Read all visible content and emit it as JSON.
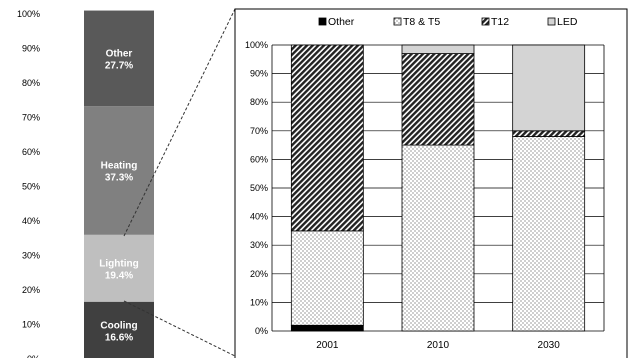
{
  "chart_data": [
    {
      "type": "bar",
      "stacked": true,
      "ylim": [
        0,
        100
      ],
      "yticks": [
        "0%",
        "10%",
        "20%",
        "30%",
        "40%",
        "50%",
        "60%",
        "70%",
        "80%",
        "90%",
        "100%"
      ],
      "segments": [
        {
          "name": "Cooling",
          "value": 16.6,
          "value_label": "16.6%",
          "color": "#404040"
        },
        {
          "name": "Lighting",
          "value": 19.4,
          "value_label": "19.4%",
          "color": "#bfbfbf"
        },
        {
          "name": "Heating",
          "value": 37.3,
          "value_label": "37.3%",
          "color": "#808080"
        },
        {
          "name": "Other",
          "value": 27.7,
          "value_label": "27.7%",
          "color": "#595959"
        }
      ],
      "grid": false
    },
    {
      "type": "bar",
      "stacked": true,
      "categories": [
        "2001",
        "2010",
        "2030"
      ],
      "ylim": [
        0,
        100
      ],
      "yticks": [
        "0%",
        "10%",
        "20%",
        "30%",
        "40%",
        "50%",
        "60%",
        "70%",
        "80%",
        "90%",
        "100%"
      ],
      "series": [
        {
          "name": "Other",
          "values": [
            2,
            0,
            0
          ],
          "fill": "solid-black"
        },
        {
          "name": "T8 & T5",
          "values": [
            33,
            65,
            68
          ],
          "fill": "dots"
        },
        {
          "name": "T12",
          "values": [
            65,
            32,
            2
          ],
          "fill": "diagonal-hatch"
        },
        {
          "name": "LED",
          "values": [
            0,
            3,
            30
          ],
          "fill": "light-gray"
        }
      ],
      "legend": "top",
      "grid": true
    }
  ]
}
